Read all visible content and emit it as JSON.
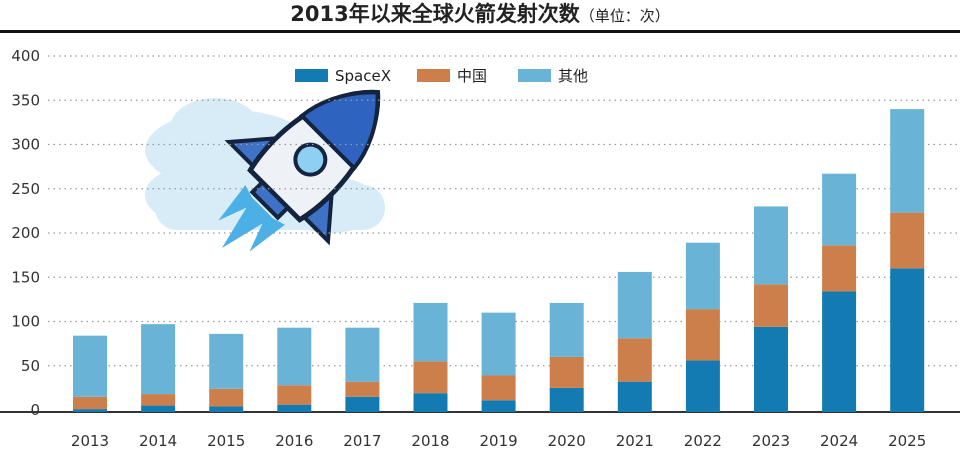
{
  "chart_data": {
    "type": "bar",
    "stacked": true,
    "title": "2013年以来全球火箭发射次数",
    "unit": "（单位：次）",
    "xlabel": "",
    "ylabel": "",
    "ylim": [
      0,
      400
    ],
    "yticks": [
      0,
      50,
      100,
      150,
      200,
      250,
      300,
      350,
      400
    ],
    "grid": true,
    "legend_position": "top-center",
    "categories": [
      "2013",
      "2014",
      "2015",
      "2016",
      "2017",
      "2018",
      "2019",
      "2020",
      "2021",
      "2022",
      "2023",
      "2024",
      "2025"
    ],
    "series": [
      {
        "name": "SpaceX",
        "color": "#137bb1",
        "values": [
          1,
          5,
          4,
          6,
          15,
          19,
          11,
          25,
          32,
          56,
          94,
          134,
          160
        ]
      },
      {
        "name": "中国",
        "color": "#cc7f4a",
        "values": [
          14,
          13,
          20,
          22,
          17,
          36,
          28,
          35,
          49,
          58,
          48,
          52,
          63
        ]
      },
      {
        "name": "其他",
        "color": "#69b3d6",
        "values": [
          69,
          79,
          62,
          65,
          61,
          66,
          71,
          61,
          75,
          75,
          88,
          81,
          117
        ]
      }
    ]
  }
}
